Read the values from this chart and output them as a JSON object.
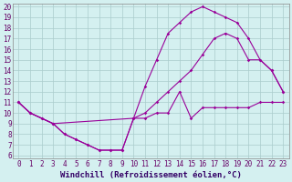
{
  "xlabel": "Windchill (Refroidissement éolien,°C)",
  "background_color": "#d4f0f0",
  "grid_color": "#aacccc",
  "line_color": "#990099",
  "xlim": [
    -0.5,
    23.5
  ],
  "ylim": [
    6,
    20
  ],
  "xticks": [
    0,
    1,
    2,
    3,
    4,
    5,
    6,
    7,
    8,
    9,
    10,
    11,
    12,
    13,
    14,
    15,
    16,
    17,
    18,
    19,
    20,
    21,
    22,
    23
  ],
  "yticks": [
    6,
    7,
    8,
    9,
    10,
    11,
    12,
    13,
    14,
    15,
    16,
    17,
    18,
    19,
    20
  ],
  "line1_x": [
    0,
    1,
    2,
    3,
    4,
    5,
    6,
    7,
    8,
    9,
    10,
    11,
    12,
    13,
    14,
    15,
    16,
    17,
    18,
    19,
    20,
    21,
    22,
    23
  ],
  "line1_y": [
    11,
    10,
    9.5,
    9,
    8,
    7.5,
    7,
    6.5,
    6.5,
    6.5,
    9.5,
    9.5,
    10,
    10,
    12,
    9.5,
    10.5,
    10.5,
    10.5,
    10.5,
    10.5,
    11,
    11,
    11
  ],
  "line2_x": [
    0,
    1,
    2,
    3,
    4,
    5,
    6,
    7,
    8,
    9,
    10,
    11,
    12,
    13,
    14,
    15,
    16,
    17,
    18,
    19,
    20,
    21,
    22,
    23
  ],
  "line2_y": [
    11,
    10,
    9.5,
    9,
    8,
    7.5,
    7,
    6.5,
    6.5,
    6.5,
    9.5,
    12.5,
    15,
    17.5,
    18.5,
    19.5,
    20,
    19.5,
    19,
    18.5,
    17,
    15,
    14,
    12
  ],
  "line3_x": [
    0,
    1,
    3,
    10,
    11,
    12,
    13,
    14,
    15,
    16,
    17,
    18,
    19,
    20,
    21,
    22,
    23
  ],
  "line3_y": [
    11,
    10,
    9,
    9.5,
    10,
    11,
    12,
    13,
    14,
    15.5,
    17,
    17.5,
    17,
    15,
    15,
    14,
    12
  ],
  "fontsize_ticks": 5.5,
  "fontsize_xlabel": 6.5
}
